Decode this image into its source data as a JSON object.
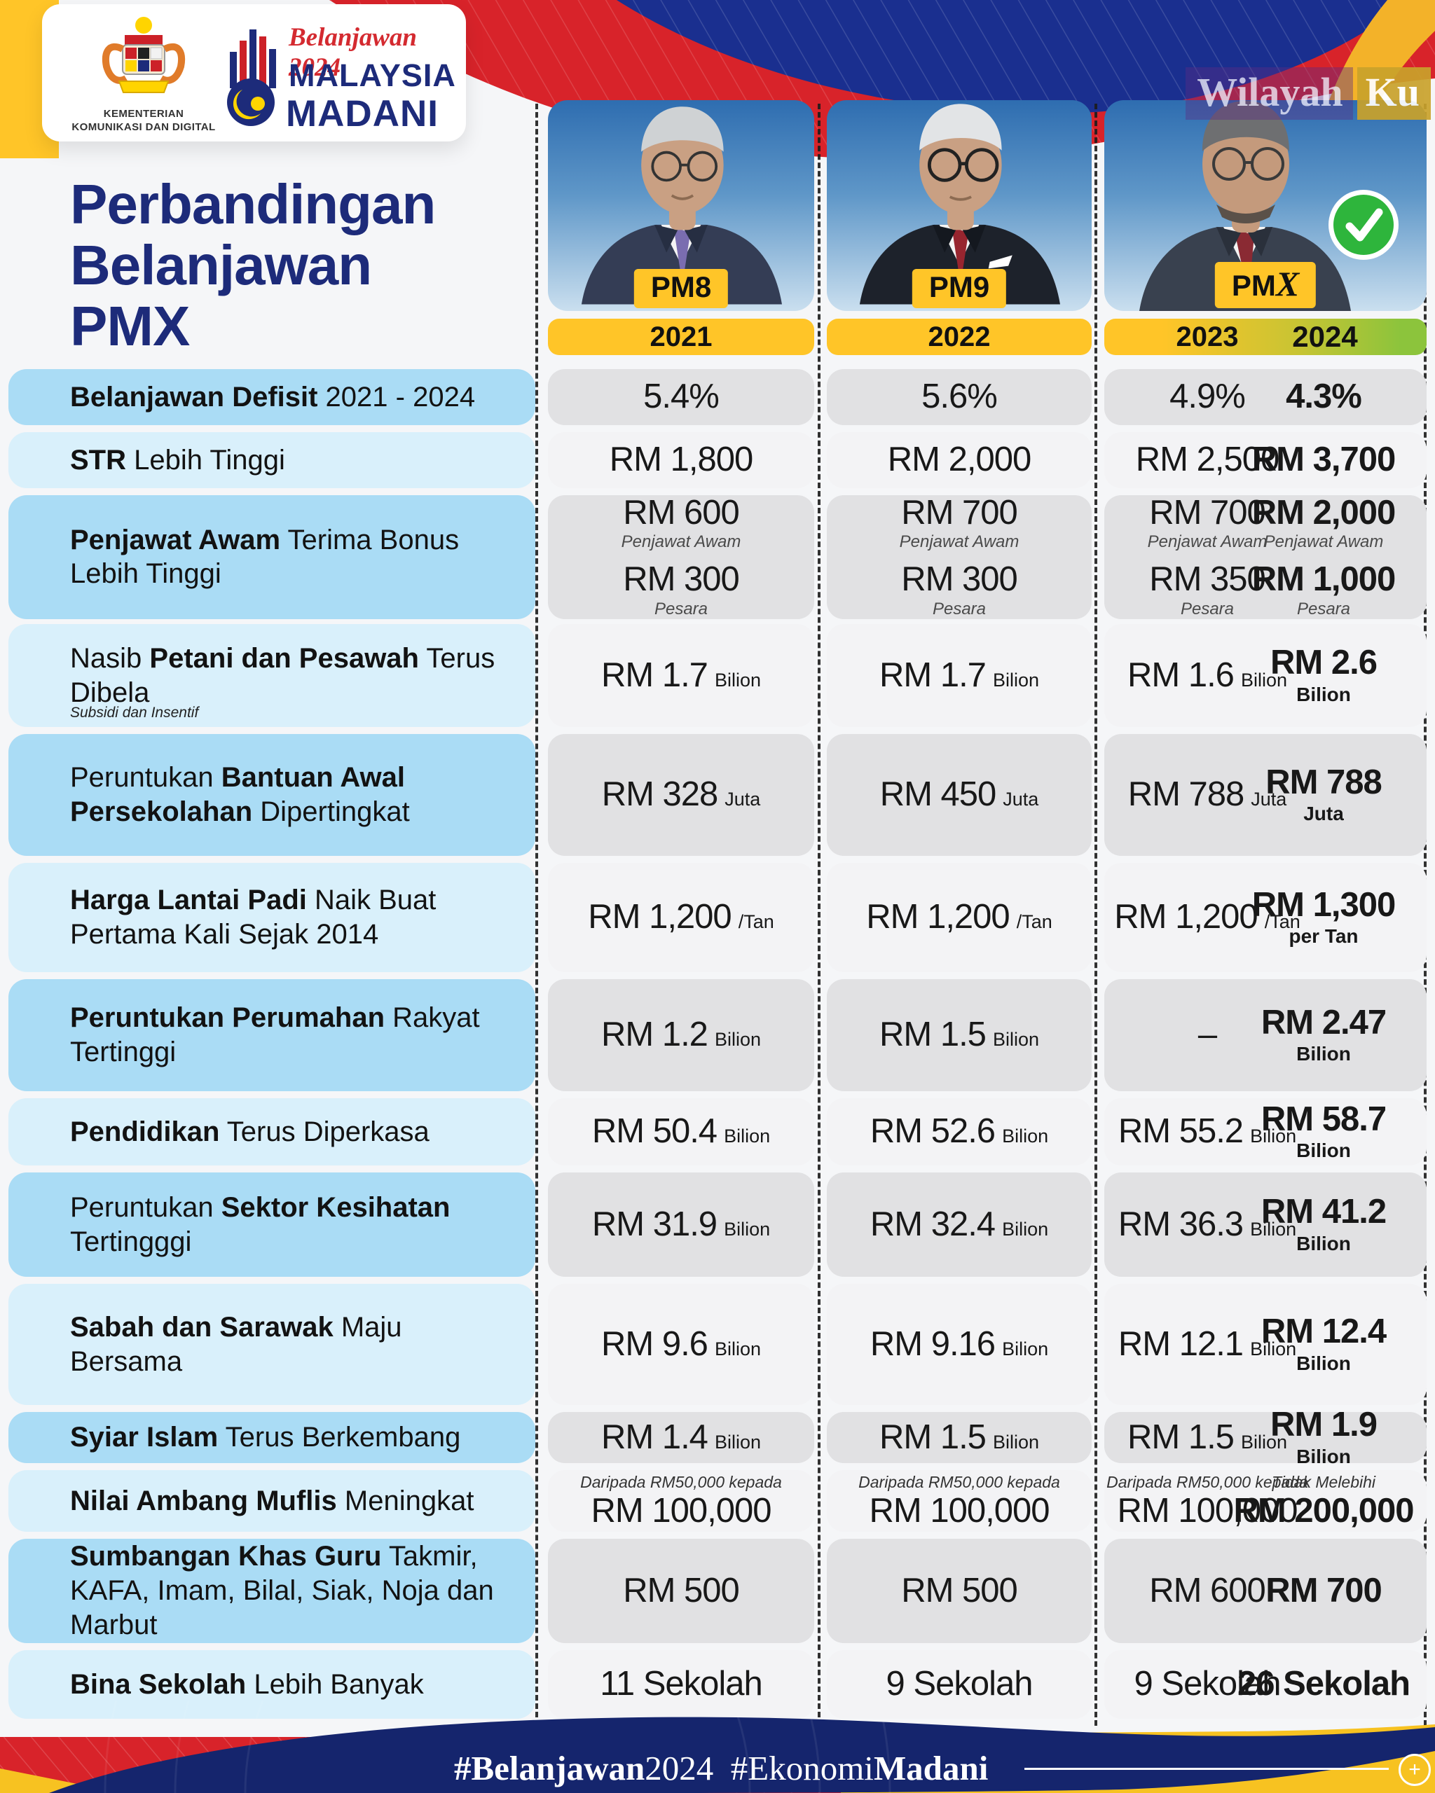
{
  "watermark": {
    "part1": "Wilayah",
    "part2": "Ku"
  },
  "logo_card": {
    "ministry_line1": "KEMENTERIAN",
    "ministry_line2": "KOMUNIKASI DAN DIGITAL",
    "script": "Belanjawan 2024",
    "brand1": "MALAYSIA",
    "brand2": "MADANI"
  },
  "title": {
    "line1": "Perbandingan",
    "line2": "Belanjawan",
    "line3": "PMX"
  },
  "pms": [
    {
      "tag_prefix": "PM",
      "tag_suffix": "8"
    },
    {
      "tag_prefix": "PM",
      "tag_suffix": "9"
    },
    {
      "tag_prefix": "PM",
      "tag_suffix": "X",
      "checked": true
    }
  ],
  "years": {
    "y2021": "2021",
    "y2022": "2022",
    "y2023": "2023",
    "y2024": "2024"
  },
  "colors": {
    "accent_yellow": "#FFC528",
    "accent_green": "#8CC43C",
    "navy": "#1D2B7A",
    "red": "#D8232A",
    "footer_navy": "#15256D",
    "label_blue_dark": "#AADCF5",
    "label_blue_light": "#D9F0FB",
    "cell_gray_dark": "#E1E1E3",
    "cell_gray_light": "#F3F3F5"
  },
  "footer": {
    "h1_bold": "#Belanjawan",
    "h1_rest": "2024",
    "h2_rest": "#Ekonomi",
    "h2_bold": "Madani",
    "plus": "+"
  },
  "rows": [
    {
      "h": 80,
      "label": {
        "pre": "",
        "bold": "Belanjawan Defisit",
        "post": " 2021 - 2024"
      },
      "cells": [
        [
          {
            "v": "5.4%"
          }
        ],
        [
          {
            "v": "5.6%"
          }
        ],
        [
          {
            "v": "4.9%"
          }
        ],
        [
          {
            "v": "4.3%"
          }
        ]
      ]
    },
    {
      "h": 80,
      "label": {
        "pre": "",
        "bold": "STR",
        "post": " Lebih Tinggi"
      },
      "cells": [
        [
          {
            "v": "RM 1,800"
          }
        ],
        [
          {
            "v": "RM 2,000"
          }
        ],
        [
          {
            "v": "RM 2,500"
          }
        ],
        [
          {
            "v": "RM 3,700"
          }
        ]
      ]
    },
    {
      "h": 174,
      "label": {
        "pre": "",
        "bold": "Penjawat Awam",
        "post": " Terima Bonus Lebih Tinggi"
      },
      "cells": [
        [
          {
            "v": "RM 600",
            "sub": "Penjawat Awam"
          },
          {
            "v": "RM 300",
            "sub": "Pesara"
          }
        ],
        [
          {
            "v": "RM 700",
            "sub": "Penjawat Awam"
          },
          {
            "v": "RM 300",
            "sub": "Pesara"
          }
        ],
        [
          {
            "v": "RM 700",
            "sub": "Penjawat Awam"
          },
          {
            "v": "RM 350",
            "sub": "Pesara"
          }
        ],
        [
          {
            "v": "RM 2,000",
            "sub": "Penjawat Awam"
          },
          {
            "v": "RM 1,000",
            "sub": "Pesara"
          }
        ]
      ]
    },
    {
      "h": 147,
      "label": {
        "pre": "Nasib ",
        "bold": "Petani dan Pesawah",
        "post": " Terus Dibela",
        "note": "Subsidi dan Insentif"
      },
      "cells": [
        [
          {
            "v": "RM 1.7",
            "u": "Bilion"
          }
        ],
        [
          {
            "v": "RM 1.7",
            "u": "Bilion"
          }
        ],
        [
          {
            "v": "RM 1.6",
            "u": "Bilion"
          }
        ],
        [
          {
            "v": "RM 2.6",
            "ub": "Bilion"
          }
        ]
      ]
    },
    {
      "h": 174,
      "label": {
        "pre": "Peruntukan ",
        "bold": "Bantuan Awal Persekolahan",
        "post": " Dipertingkat"
      },
      "cells": [
        [
          {
            "v": "RM 328",
            "u": "Juta"
          }
        ],
        [
          {
            "v": "RM 450",
            "u": "Juta"
          }
        ],
        [
          {
            "v": "RM 788",
            "u": "Juta"
          }
        ],
        [
          {
            "v": "RM 788",
            "ub": "Juta"
          }
        ]
      ]
    },
    {
      "h": 156,
      "label": {
        "pre": "",
        "bold": "Harga Lantai Padi",
        "post": " Naik Buat Pertama Kali Sejak 2014"
      },
      "cells": [
        [
          {
            "v": "RM 1,200",
            "u": "/Tan"
          }
        ],
        [
          {
            "v": "RM 1,200",
            "u": "/Tan"
          }
        ],
        [
          {
            "v": "RM 1,200",
            "u": "/Tan"
          }
        ],
        [
          {
            "v": "RM 1,300",
            "ub": "per Tan"
          }
        ]
      ]
    },
    {
      "h": 160,
      "label": {
        "pre": "",
        "bold": "Peruntukan Perumahan",
        "post": " Rakyat Tertinggi"
      },
      "cells": [
        [
          {
            "v": "RM 1.2",
            "u": "Bilion"
          }
        ],
        [
          {
            "v": "RM 1.5",
            "u": "Bilion"
          }
        ],
        [
          {
            "v": "–"
          }
        ],
        [
          {
            "v": "RM 2.47",
            "ub": "Bilion"
          }
        ]
      ]
    },
    {
      "h": 96,
      "label": {
        "pre": "",
        "bold": "Pendidikan",
        "post": " Terus Diperkasa"
      },
      "cells": [
        [
          {
            "v": "RM 50.4",
            "u": "Bilion"
          }
        ],
        [
          {
            "v": "RM 52.6",
            "u": "Bilion"
          }
        ],
        [
          {
            "v": "RM 55.2",
            "u": "Bilion"
          }
        ],
        [
          {
            "v": "RM 58.7",
            "ub": "Bilion"
          }
        ]
      ]
    },
    {
      "h": 149,
      "label": {
        "pre": "Peruntukan ",
        "bold": "Sektor Kesihatan",
        "post": " Tertingggi"
      },
      "cells": [
        [
          {
            "v": "RM 31.9",
            "u": "Bilion"
          }
        ],
        [
          {
            "v": "RM 32.4",
            "u": "Bilion"
          }
        ],
        [
          {
            "v": "RM 36.3",
            "u": "Bilion"
          }
        ],
        [
          {
            "v": "RM 41.2",
            "ub": "Bilion"
          }
        ]
      ]
    },
    {
      "h": 173,
      "label": {
        "pre": "",
        "bold": "Sabah dan Sarawak",
        "post": " Maju Bersama"
      },
      "cells": [
        [
          {
            "v": "RM 9.6",
            "u": "Bilion"
          }
        ],
        [
          {
            "v": "RM 9.16",
            "u": "Bilion"
          }
        ],
        [
          {
            "v": "RM 12.1",
            "u": "Bilion"
          }
        ],
        [
          {
            "v": "RM 12.4",
            "ub": "Bilion"
          }
        ]
      ]
    },
    {
      "h": 73,
      "label": {
        "pre": "",
        "bold": "Syiar Islam",
        "post": " Terus Berkembang"
      },
      "cells": [
        [
          {
            "v": "RM 1.4",
            "u": "Bilion"
          }
        ],
        [
          {
            "v": "RM 1.5",
            "u": "Bilion"
          }
        ],
        [
          {
            "v": "RM 1.5",
            "u": "Bilion"
          }
        ],
        [
          {
            "v": "RM 1.9",
            "ub": "Bilion"
          }
        ]
      ]
    },
    {
      "h": 88,
      "label": {
        "pre": "",
        "bold": "Nilai Ambang Muflis",
        "post": " Meningkat"
      },
      "cells": [
        [
          {
            "top": "Daripada RM50,000 kepada",
            "v": "RM 100,000"
          }
        ],
        [
          {
            "top": "Daripada RM50,000 kepada",
            "v": "RM 100,000"
          }
        ],
        [
          {
            "top": "Daripada RM50,000 kepada",
            "v": "RM 100,000"
          }
        ],
        [
          {
            "top": "Tidak Melebihi",
            "v": "RM 200,000"
          }
        ]
      ]
    },
    {
      "h": 149,
      "label": {
        "pre": "",
        "bold": "Sumbangan Khas Guru",
        "post": " Takmir, KAFA, Imam, Bilal, Siak, Noja dan Marbut"
      },
      "cells": [
        [
          {
            "v": "RM 500"
          }
        ],
        [
          {
            "v": "RM 500"
          }
        ],
        [
          {
            "v": "RM 600"
          }
        ],
        [
          {
            "v": "RM 700"
          }
        ]
      ]
    },
    {
      "h": 98,
      "label": {
        "pre": "",
        "bold": "Bina Sekolah",
        "post": " Lebih Banyak"
      },
      "cells": [
        [
          {
            "v": "11 Sekolah"
          }
        ],
        [
          {
            "v": "9 Sekolah"
          }
        ],
        [
          {
            "v": "9 Sekolah"
          }
        ],
        [
          {
            "v": "26 Sekolah"
          }
        ]
      ]
    }
  ],
  "chart_data": {
    "type": "table",
    "title": "Perbandingan Belanjawan PMX",
    "columns": [
      "2021",
      "2022",
      "2023",
      "2024"
    ],
    "column_pm": [
      "PM8",
      "PM9",
      "PMX",
      "PMX"
    ],
    "rows": [
      {
        "metric": "Belanjawan Defisit 2021 - 2024",
        "values": [
          "5.4%",
          "5.6%",
          "4.9%",
          "4.3%"
        ]
      },
      {
        "metric": "STR Lebih Tinggi",
        "values": [
          "RM 1,800",
          "RM 2,000",
          "RM 2,500",
          "RM 3,700"
        ]
      },
      {
        "metric": "Penjawat Awam Terima Bonus Lebih Tinggi (Penjawat Awam / Pesara)",
        "values": [
          "RM 600 / RM 300",
          "RM 700 / RM 300",
          "RM 700 / RM 350",
          "RM 2,000 / RM 1,000"
        ]
      },
      {
        "metric": "Nasib Petani dan Pesawah Terus Dibela (Subsidi dan Insentif)",
        "values": [
          "RM 1.7 Bilion",
          "RM 1.7 Bilion",
          "RM 1.6 Bilion",
          "RM 2.6 Bilion"
        ]
      },
      {
        "metric": "Peruntukan Bantuan Awal Persekolahan Dipertingkat",
        "values": [
          "RM 328 Juta",
          "RM 450 Juta",
          "RM 788 Juta",
          "RM 788 Juta"
        ]
      },
      {
        "metric": "Harga Lantai Padi Naik Buat Pertama Kali Sejak 2014",
        "values": [
          "RM 1,200 /Tan",
          "RM 1,200 /Tan",
          "RM 1,200 /Tan",
          "RM 1,300 per Tan"
        ]
      },
      {
        "metric": "Peruntukan Perumahan Rakyat Tertinggi",
        "values": [
          "RM 1.2 Bilion",
          "RM 1.5 Bilion",
          "–",
          "RM 2.47 Bilion"
        ]
      },
      {
        "metric": "Pendidikan Terus Diperkasa",
        "values": [
          "RM 50.4 Bilion",
          "RM 52.6 Bilion",
          "RM 55.2 Bilion",
          "RM 58.7 Bilion"
        ]
      },
      {
        "metric": "Peruntukan Sektor Kesihatan Tertingggi",
        "values": [
          "RM 31.9 Bilion",
          "RM 32.4 Bilion",
          "RM 36.3 Bilion",
          "RM 41.2 Bilion"
        ]
      },
      {
        "metric": "Sabah dan Sarawak Maju Bersama",
        "values": [
          "RM 9.6 Bilion",
          "RM 9.16 Bilion",
          "RM 12.1 Bilion",
          "RM 12.4 Bilion"
        ]
      },
      {
        "metric": "Syiar Islam Terus Berkembang",
        "values": [
          "RM 1.4 Bilion",
          "RM 1.5 Bilion",
          "RM 1.5 Bilion",
          "RM 1.9 Bilion"
        ]
      },
      {
        "metric": "Nilai Ambang Muflis Meningkat",
        "values": [
          "Daripada RM50,000 kepada RM 100,000",
          "Daripada RM50,000 kepada RM 100,000",
          "Daripada RM50,000 kepada RM 100,000",
          "Tidak Melebihi RM 200,000"
        ]
      },
      {
        "metric": "Sumbangan Khas Guru Takmir, KAFA, Imam, Bilal, Siak, Noja dan Marbut",
        "values": [
          "RM 500",
          "RM 500",
          "RM 600",
          "RM 700"
        ]
      },
      {
        "metric": "Bina Sekolah Lebih Banyak",
        "values": [
          "11 Sekolah",
          "9 Sekolah",
          "9 Sekolah",
          "26 Sekolah"
        ]
      }
    ]
  }
}
